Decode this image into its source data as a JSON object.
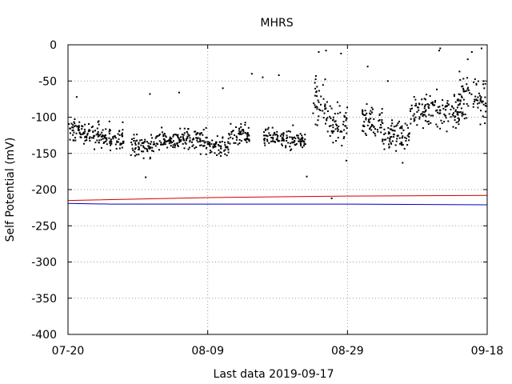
{
  "chart_data": {
    "type": "scatter",
    "title": "MHRS",
    "xlabel": "Last data 2019-09-17",
    "ylabel": "Self Potential (mV)",
    "xlim": [
      "2019-07-20",
      "2019-09-18"
    ],
    "ylim": [
      -400,
      0
    ],
    "x_ticks": [
      "07-20",
      "08-09",
      "08-29",
      "09-18"
    ],
    "x_tick_dates": [
      "2019-07-20",
      "2019-08-09",
      "2019-08-29",
      "2019-09-18"
    ],
    "y_ticks": [
      0,
      -50,
      -100,
      -150,
      -200,
      -250,
      -300,
      -350,
      -400
    ],
    "grid": true,
    "legend": "none",
    "colors": {
      "points": "#000000",
      "line1": "#d00000",
      "line2": "#0000c0",
      "grid": "#999999"
    },
    "reference_lines": [
      {
        "color": "#d00000",
        "x": [
          "2019-07-20",
          "2019-08-09",
          "2019-08-29",
          "2019-09-18"
        ],
        "y": [
          -215,
          -211,
          -209,
          -208
        ]
      },
      {
        "color": "#0000c0",
        "x": [
          "2019-07-20",
          "2019-07-26",
          "2019-08-29",
          "2019-09-18"
        ],
        "y": [
          -219,
          -220,
          -220,
          -221
        ]
      }
    ],
    "scatter_clusters": [
      {
        "start": "2019-07-20",
        "end": "2019-07-23",
        "mean": -120,
        "spread": 18
      },
      {
        "start": "2019-07-23",
        "end": "2019-07-26",
        "mean": -125,
        "spread": 20
      },
      {
        "start": "2019-07-26",
        "end": "2019-07-28",
        "mean": -130,
        "spread": 18
      },
      {
        "start": "2019-07-29",
        "end": "2019-08-01",
        "mean": -140,
        "spread": 18
      },
      {
        "start": "2019-08-01",
        "end": "2019-08-05",
        "mean": -132,
        "spread": 16
      },
      {
        "start": "2019-08-05",
        "end": "2019-08-09",
        "mean": -130,
        "spread": 20
      },
      {
        "start": "2019-08-09",
        "end": "2019-08-12",
        "mean": -140,
        "spread": 15
      },
      {
        "start": "2019-08-12",
        "end": "2019-08-15",
        "mean": -125,
        "spread": 18
      },
      {
        "start": "2019-08-17",
        "end": "2019-08-20",
        "mean": -130,
        "spread": 15
      },
      {
        "start": "2019-08-20",
        "end": "2019-08-23",
        "mean": -130,
        "spread": 18
      },
      {
        "start": "2019-08-24",
        "end": "2019-08-26",
        "mean": -80,
        "spread": 40
      },
      {
        "start": "2019-08-26",
        "end": "2019-08-29",
        "mean": -110,
        "spread": 30
      },
      {
        "start": "2019-08-31",
        "end": "2019-09-03",
        "mean": -105,
        "spread": 25
      },
      {
        "start": "2019-09-03",
        "end": "2019-09-07",
        "mean": -125,
        "spread": 22
      },
      {
        "start": "2019-09-07",
        "end": "2019-09-10",
        "mean": -90,
        "spread": 30
      },
      {
        "start": "2019-09-10",
        "end": "2019-09-14",
        "mean": -90,
        "spread": 35
      },
      {
        "start": "2019-09-14",
        "end": "2019-09-18",
        "mean": -75,
        "spread": 40
      }
    ],
    "outlier_points": [
      {
        "x": "2019-07-21",
        "y": -72
      },
      {
        "x": "2019-07-28",
        "y": -107
      },
      {
        "x": "2019-07-31",
        "y": -183
      },
      {
        "x": "2019-08-01",
        "y": -68
      },
      {
        "x": "2019-08-05",
        "y": -66
      },
      {
        "x": "2019-08-11",
        "y": -60
      },
      {
        "x": "2019-08-15",
        "y": -40
      },
      {
        "x": "2019-08-17",
        "y": -45
      },
      {
        "x": "2019-08-19",
        "y": -42
      },
      {
        "x": "2019-08-23",
        "y": -182
      },
      {
        "x": "2019-08-25",
        "y": -10
      },
      {
        "x": "2019-08-26",
        "y": -8
      },
      {
        "x": "2019-08-27",
        "y": -212
      },
      {
        "x": "2019-08-28",
        "y": -12
      },
      {
        "x": "2019-08-29",
        "y": -160
      },
      {
        "x": "2019-09-01",
        "y": -30
      },
      {
        "x": "2019-09-04",
        "y": -50
      },
      {
        "x": "2019-09-06",
        "y": -163
      },
      {
        "x": "2019-09-11",
        "y": -8
      },
      {
        "x": "2019-09-11",
        "y": -5
      },
      {
        "x": "2019-09-15",
        "y": -20
      },
      {
        "x": "2019-09-16",
        "y": -10
      },
      {
        "x": "2019-09-17",
        "y": -5
      }
    ]
  }
}
